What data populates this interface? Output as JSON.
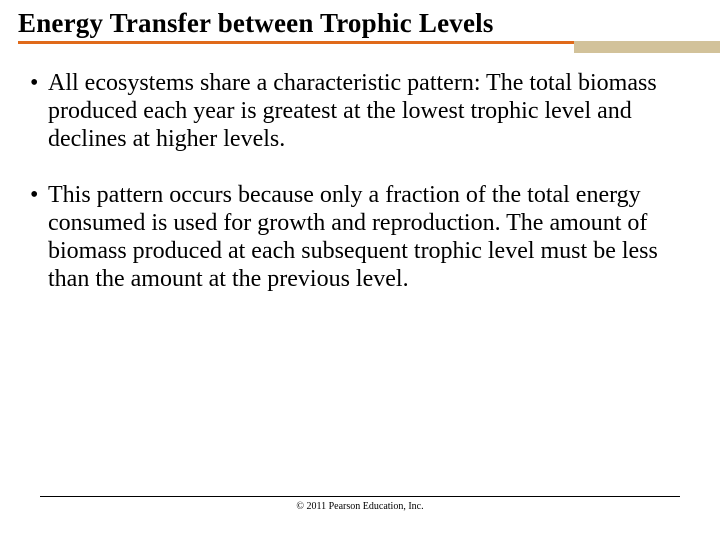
{
  "slide": {
    "title": "Energy Transfer between Trophic Levels",
    "title_color": "#000000",
    "title_fontsize": 27,
    "underline": {
      "orange_color": "#e06a1a",
      "orange_width": 556,
      "orange_height": 3,
      "tan_color": "#d2c29a",
      "tan_width": 146,
      "tan_height": 12
    },
    "bullets": [
      "All ecosystems share a characteristic pattern: The total biomass produced each year is greatest at the lowest trophic level and declines at higher levels.",
      "This pattern occurs because only a fraction of the total energy consumed is used for growth and reproduction.  The amount of biomass produced at each subsequent trophic level must be less than the amount at the previous level."
    ],
    "body_fontsize": 24,
    "body_color": "#000000",
    "background_color": "#ffffff",
    "footer": {
      "line_width": 640,
      "copyright": "© 2011 Pearson Education, Inc.",
      "copyright_fontsize": 10
    }
  }
}
